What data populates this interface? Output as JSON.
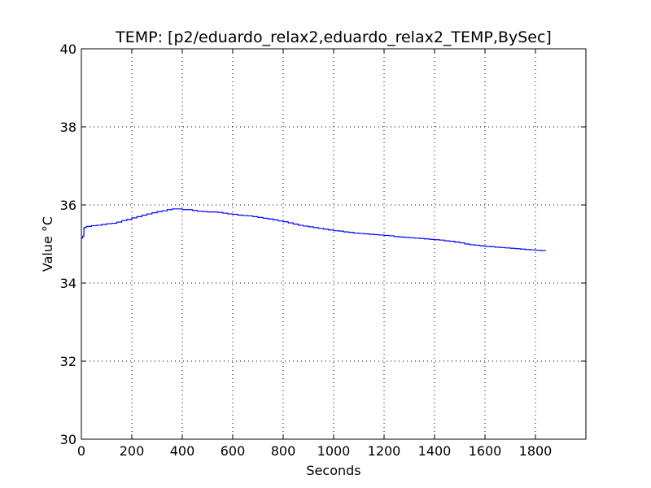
{
  "chart_data": {
    "type": "line",
    "title": "TEMP: [p2/eduardo_relax2,eduardo_relax2_TEMP,BySec]",
    "xlabel": "Seconds",
    "ylabel": "Value °C",
    "xlim": [
      0,
      2000
    ],
    "ylim": [
      30,
      40
    ],
    "x_ticks": [
      0,
      200,
      400,
      600,
      800,
      1000,
      1200,
      1400,
      1600,
      1800
    ],
    "y_ticks": [
      30,
      32,
      34,
      36,
      38,
      40
    ],
    "grid": true,
    "series": [
      {
        "color": "#0000ff",
        "x": [
          0,
          5,
          10,
          20,
          40,
          60,
          80,
          100,
          120,
          140,
          160,
          180,
          200,
          220,
          240,
          260,
          280,
          300,
          320,
          340,
          360,
          380,
          400,
          420,
          440,
          460,
          480,
          500,
          520,
          540,
          560,
          580,
          600,
          620,
          640,
          660,
          680,
          700,
          720,
          740,
          760,
          780,
          800,
          820,
          840,
          860,
          880,
          900,
          920,
          940,
          960,
          980,
          1000,
          1020,
          1040,
          1060,
          1080,
          1100,
          1120,
          1140,
          1160,
          1180,
          1200,
          1220,
          1240,
          1260,
          1280,
          1300,
          1320,
          1340,
          1360,
          1380,
          1400,
          1420,
          1440,
          1460,
          1480,
          1500,
          1520,
          1540,
          1560,
          1580,
          1600,
          1620,
          1640,
          1660,
          1680,
          1700,
          1720,
          1740,
          1760,
          1780,
          1800,
          1820,
          1840
        ],
        "y": [
          35.15,
          35.2,
          35.42,
          35.45,
          35.47,
          35.48,
          35.5,
          35.52,
          35.53,
          35.56,
          35.6,
          35.63,
          35.67,
          35.7,
          35.74,
          35.77,
          35.8,
          35.83,
          35.85,
          35.88,
          35.9,
          35.9,
          35.88,
          35.88,
          35.86,
          35.84,
          35.83,
          35.82,
          35.82,
          35.81,
          35.79,
          35.77,
          35.76,
          35.74,
          35.73,
          35.72,
          35.7,
          35.68,
          35.66,
          35.64,
          35.62,
          35.59,
          35.57,
          35.54,
          35.51,
          35.48,
          35.46,
          35.44,
          35.42,
          35.4,
          35.38,
          35.36,
          35.34,
          35.33,
          35.31,
          35.3,
          35.28,
          35.27,
          35.26,
          35.25,
          35.24,
          35.23,
          35.22,
          35.21,
          35.19,
          35.18,
          35.17,
          35.16,
          35.15,
          35.14,
          35.13,
          35.12,
          35.11,
          35.1,
          35.08,
          35.07,
          35.05,
          35.03,
          35.0,
          34.98,
          34.97,
          34.95,
          34.94,
          34.93,
          34.92,
          34.91,
          34.9,
          34.89,
          34.88,
          34.87,
          34.86,
          34.85,
          34.84,
          34.83,
          34.82
        ]
      }
    ]
  }
}
